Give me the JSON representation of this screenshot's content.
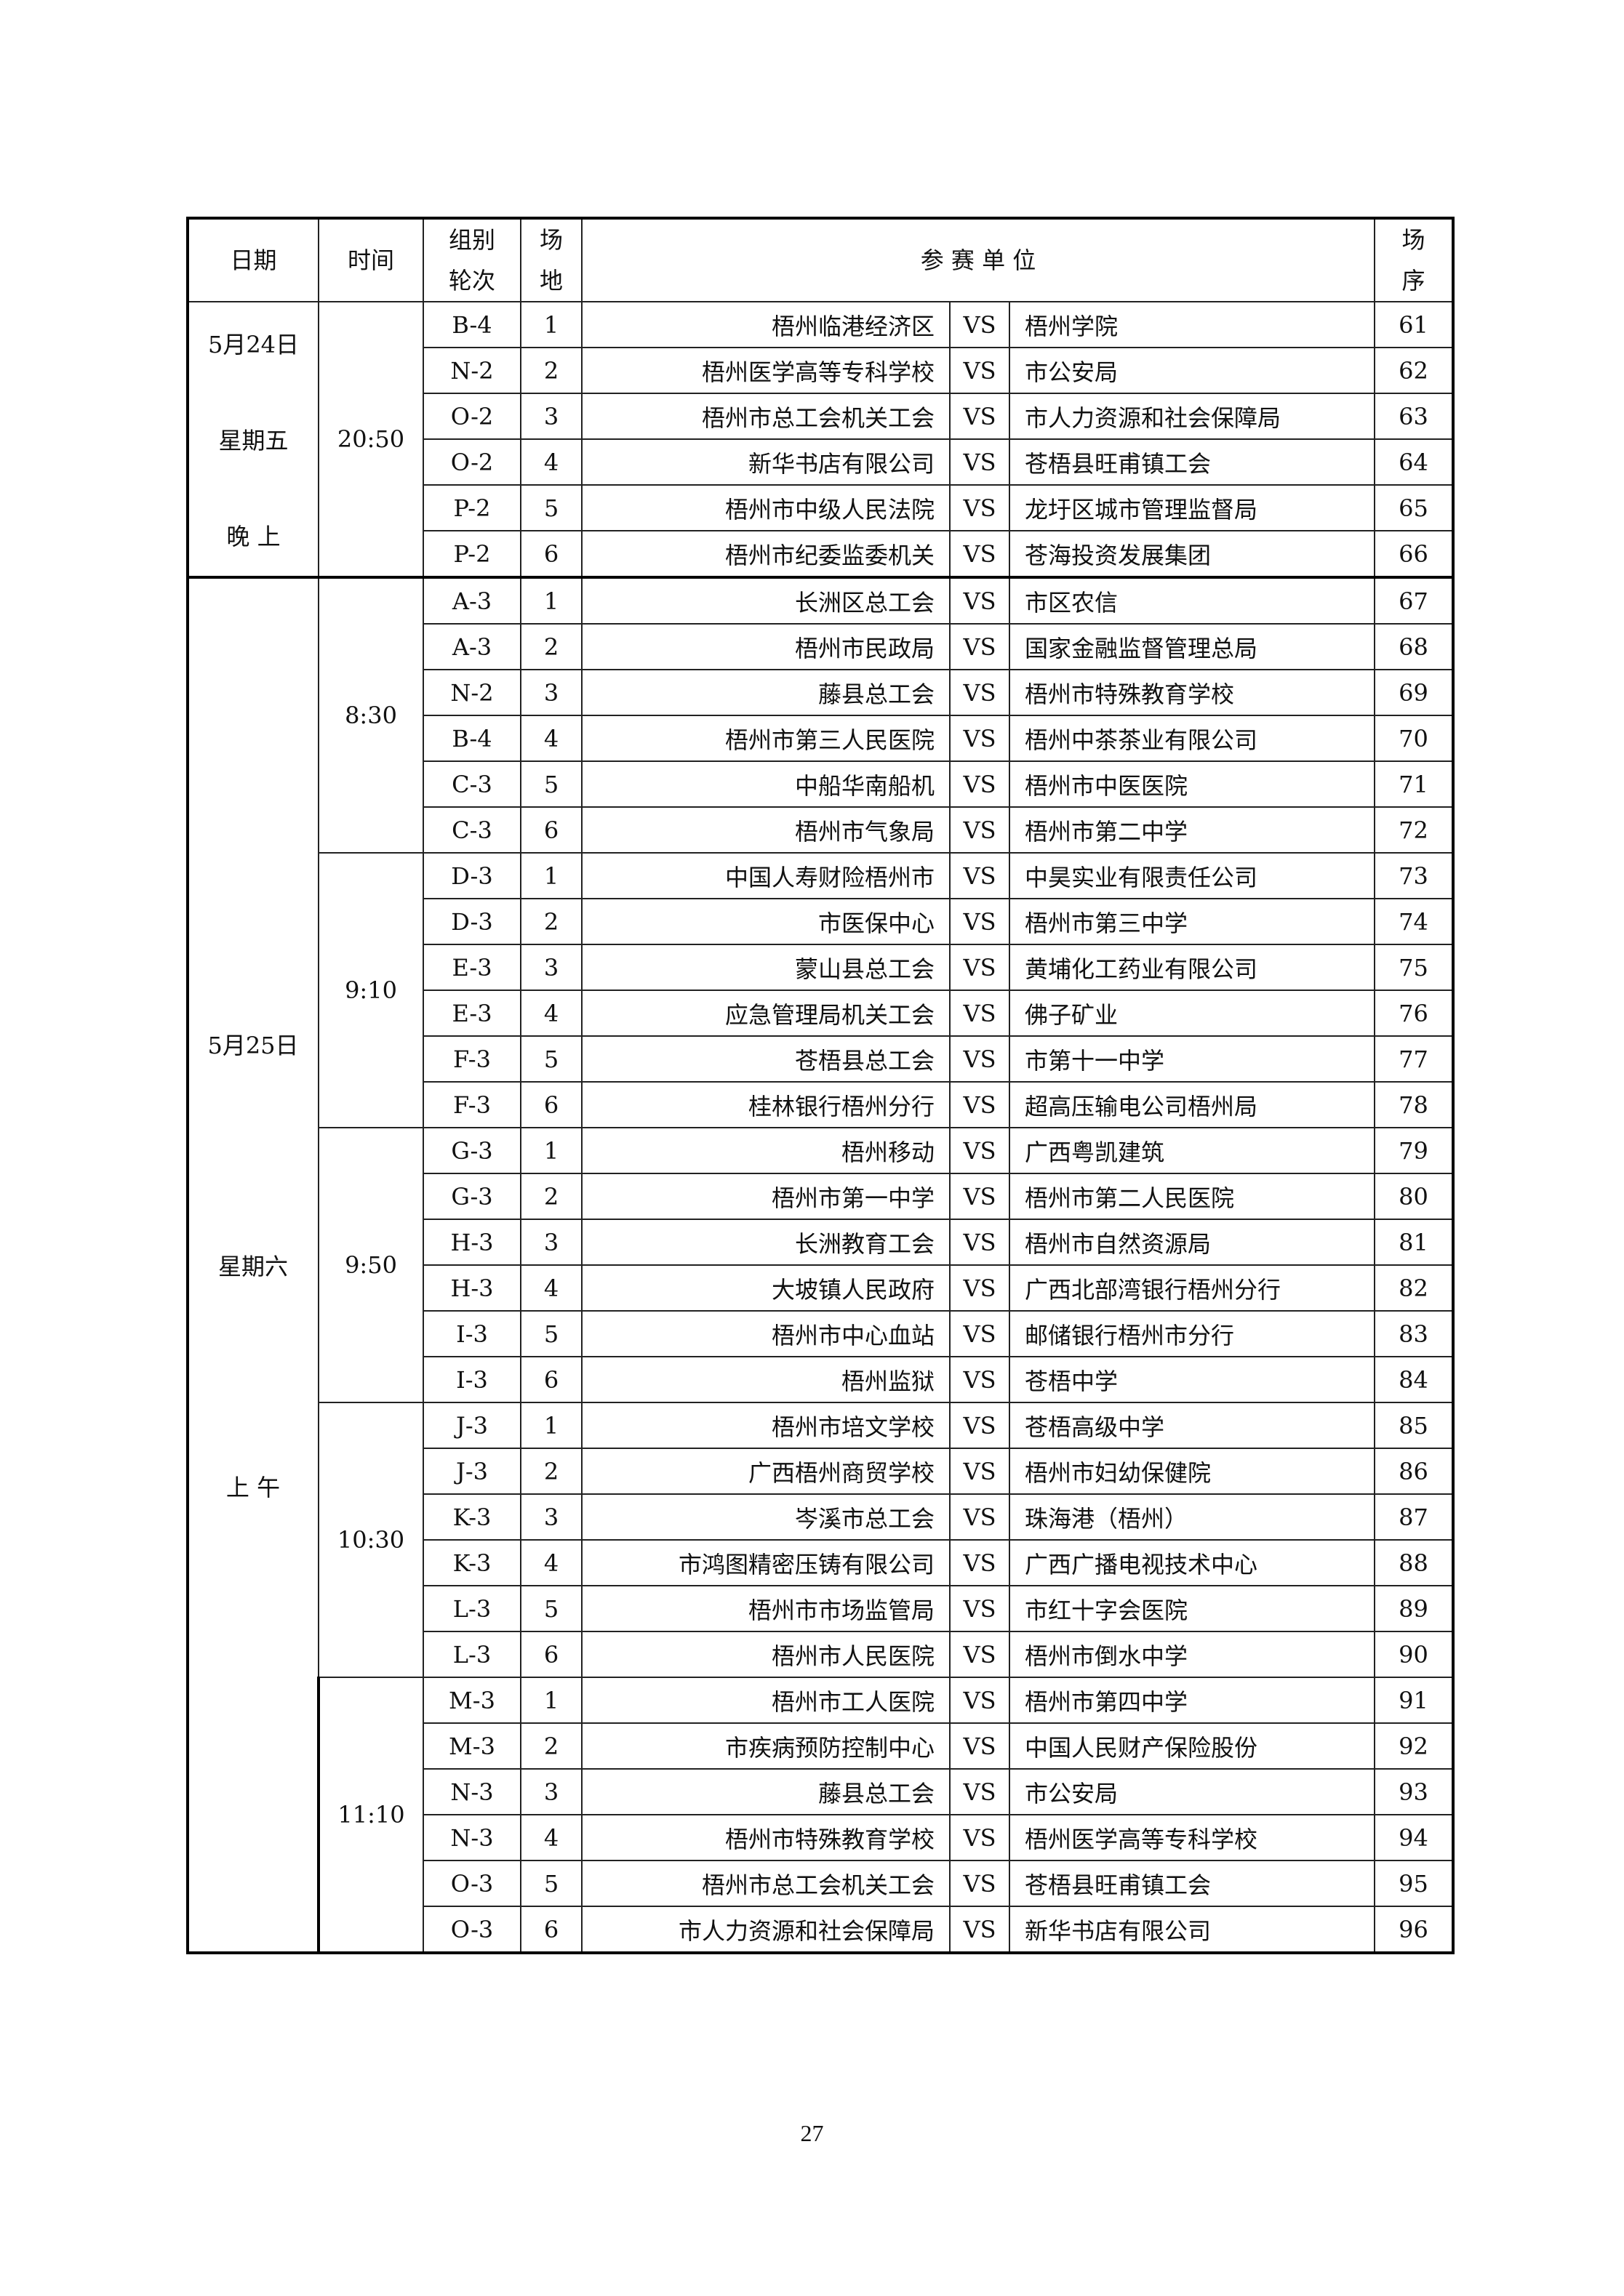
{
  "header": {
    "date": "日期",
    "time": "时间",
    "group_round": [
      "组别",
      "轮次"
    ],
    "court": [
      "场",
      "地"
    ],
    "teams": "参 赛 单 位",
    "order": [
      "场",
      "序"
    ]
  },
  "date_blocks": [
    {
      "lines": [
        "5月24日",
        "星期五",
        "晚 上"
      ],
      "rows": 6
    },
    {
      "lines": [
        "5月25日",
        "星期六",
        "上 午"
      ],
      "rows": 30
    }
  ],
  "time_blocks": [
    {
      "time": "20:50",
      "rows": 6
    },
    {
      "time": "8:30",
      "rows": 6
    },
    {
      "time": "9:10",
      "rows": 6
    },
    {
      "time": "9:50",
      "rows": 6
    },
    {
      "time": "10:30",
      "rows": 6
    },
    {
      "time": "11:10",
      "rows": 6
    }
  ],
  "vs_label": "VS",
  "matches": [
    [
      "B-4",
      "1",
      "梧州临港经济区",
      "梧州学院",
      "61"
    ],
    [
      "N-2",
      "2",
      "梧州医学高等专科学校",
      "市公安局",
      "62"
    ],
    [
      "O-2",
      "3",
      "梧州市总工会机关工会",
      "市人力资源和社会保障局",
      "63"
    ],
    [
      "O-2",
      "4",
      "新华书店有限公司",
      "苍梧县旺甫镇工会",
      "64"
    ],
    [
      "P-2",
      "5",
      "梧州市中级人民法院",
      "龙圩区城市管理监督局",
      "65"
    ],
    [
      "P-2",
      "6",
      "梧州市纪委监委机关",
      "苍海投资发展集团",
      "66"
    ],
    [
      "A-3",
      "1",
      "长洲区总工会",
      "市区农信",
      "67"
    ],
    [
      "A-3",
      "2",
      "梧州市民政局",
      "国家金融监督管理总局",
      "68"
    ],
    [
      "N-2",
      "3",
      "藤县总工会",
      "梧州市特殊教育学校",
      "69"
    ],
    [
      "B-4",
      "4",
      "梧州市第三人民医院",
      "梧州中茶茶业有限公司",
      "70"
    ],
    [
      "C-3",
      "5",
      "中船华南船机",
      "梧州市中医医院",
      "71"
    ],
    [
      "C-3",
      "6",
      "梧州市气象局",
      "梧州市第二中学",
      "72"
    ],
    [
      "D-3",
      "1",
      "中国人寿财险梧州市",
      "中昊实业有限责任公司",
      "73"
    ],
    [
      "D-3",
      "2",
      "市医保中心",
      "梧州市第三中学",
      "74"
    ],
    [
      "E-3",
      "3",
      "蒙山县总工会",
      "黄埔化工药业有限公司",
      "75"
    ],
    [
      "E-3",
      "4",
      "应急管理局机关工会",
      "佛子矿业",
      "76"
    ],
    [
      "F-3",
      "5",
      "苍梧县总工会",
      "市第十一中学",
      "77"
    ],
    [
      "F-3",
      "6",
      "桂林银行梧州分行",
      "超高压输电公司梧州局",
      "78"
    ],
    [
      "G-3",
      "1",
      "梧州移动",
      "广西粤凯建筑",
      "79"
    ],
    [
      "G-3",
      "2",
      "梧州市第一中学",
      "梧州市第二人民医院",
      "80"
    ],
    [
      "H-3",
      "3",
      "长洲教育工会",
      "梧州市自然资源局",
      "81"
    ],
    [
      "H-3",
      "4",
      "大坡镇人民政府",
      "广西北部湾银行梧州分行",
      "82"
    ],
    [
      "I-3",
      "5",
      "梧州市中心血站",
      "邮储银行梧州市分行",
      "83"
    ],
    [
      "I-3",
      "6",
      "梧州监狱",
      "苍梧中学",
      "84"
    ],
    [
      "J-3",
      "1",
      "梧州市培文学校",
      "苍梧高级中学",
      "85"
    ],
    [
      "J-3",
      "2",
      "广西梧州商贸学校",
      "梧州市妇幼保健院",
      "86"
    ],
    [
      "K-3",
      "3",
      "岑溪市总工会",
      "珠海港（梧州）",
      "87"
    ],
    [
      "K-3",
      "4",
      "市鸿图精密压铸有限公司",
      "广西广播电视技术中心",
      "88"
    ],
    [
      "L-3",
      "5",
      "梧州市市场监管局",
      "市红十字会医院",
      "89"
    ],
    [
      "L-3",
      "6",
      "梧州市人民医院",
      "梧州市倒水中学",
      "90"
    ],
    [
      "M-3",
      "1",
      "梧州市工人医院",
      "梧州市第四中学",
      "91"
    ],
    [
      "M-3",
      "2",
      "市疾病预防控制中心",
      "中国人民财产保险股份",
      "92"
    ],
    [
      "N-3",
      "3",
      "藤县总工会",
      "市公安局",
      "93"
    ],
    [
      "N-3",
      "4",
      "梧州市特殊教育学校",
      "梧州医学高等专科学校",
      "94"
    ],
    [
      "O-3",
      "5",
      "梧州市总工会机关工会",
      "苍梧县旺甫镇工会",
      "95"
    ],
    [
      "O-3",
      "6",
      "市人力资源和社会保障局",
      "新华书店有限公司",
      "96"
    ]
  ],
  "page_number": "27"
}
